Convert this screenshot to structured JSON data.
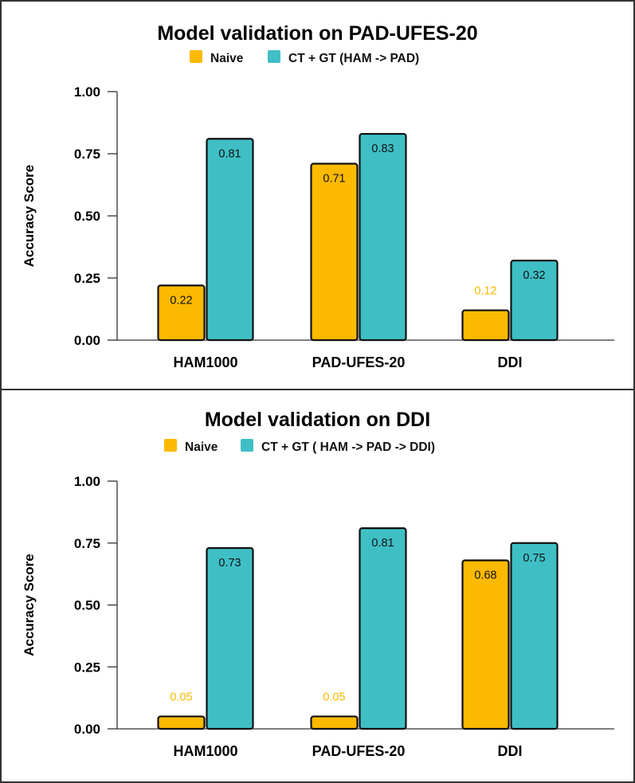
{
  "chart_data": [
    {
      "type": "bar",
      "title": "Model validation on PAD-UFES-20",
      "xlabel": "",
      "ylabel": "Accuracy Score",
      "ylim": [
        0,
        1
      ],
      "yticks": [
        "0.00",
        "0.25",
        "0.50",
        "0.75",
        "1.00"
      ],
      "grid": false,
      "legend_position": "top",
      "categories": [
        "HAM1000",
        "PAD-UFES-20",
        "DDI"
      ],
      "series": [
        {
          "name": "Naive",
          "color": "#FBB900",
          "values": [
            0.22,
            0.71,
            0.12
          ],
          "labels": [
            "0.22",
            "0.71",
            "0.12"
          ]
        },
        {
          "name": "CT + GT (HAM -> PAD)",
          "color": "#3FBFC5",
          "values": [
            0.81,
            0.83,
            0.32
          ],
          "labels": [
            "0.81",
            "0.83",
            "0.32"
          ]
        }
      ]
    },
    {
      "type": "bar",
      "title": "Model validation on DDI",
      "xlabel": "",
      "ylabel": "Accuracy Score",
      "ylim": [
        0,
        1
      ],
      "yticks": [
        "0.00",
        "0.25",
        "0.50",
        "0.75",
        "1.00"
      ],
      "grid": false,
      "legend_position": "top",
      "categories": [
        "HAM1000",
        "PAD-UFES-20",
        "DDI"
      ],
      "series": [
        {
          "name": "Naive",
          "color": "#FBB900",
          "values": [
            0.05,
            0.05,
            0.68
          ],
          "labels": [
            "0.05",
            "0.05",
            "0.68"
          ]
        },
        {
          "name": "CT + GT ( HAM -> PAD -> DDI)",
          "color": "#3FBFC5",
          "values": [
            0.73,
            0.81,
            0.75
          ],
          "labels": [
            "0.73",
            "0.81",
            "0.75"
          ]
        }
      ]
    }
  ]
}
